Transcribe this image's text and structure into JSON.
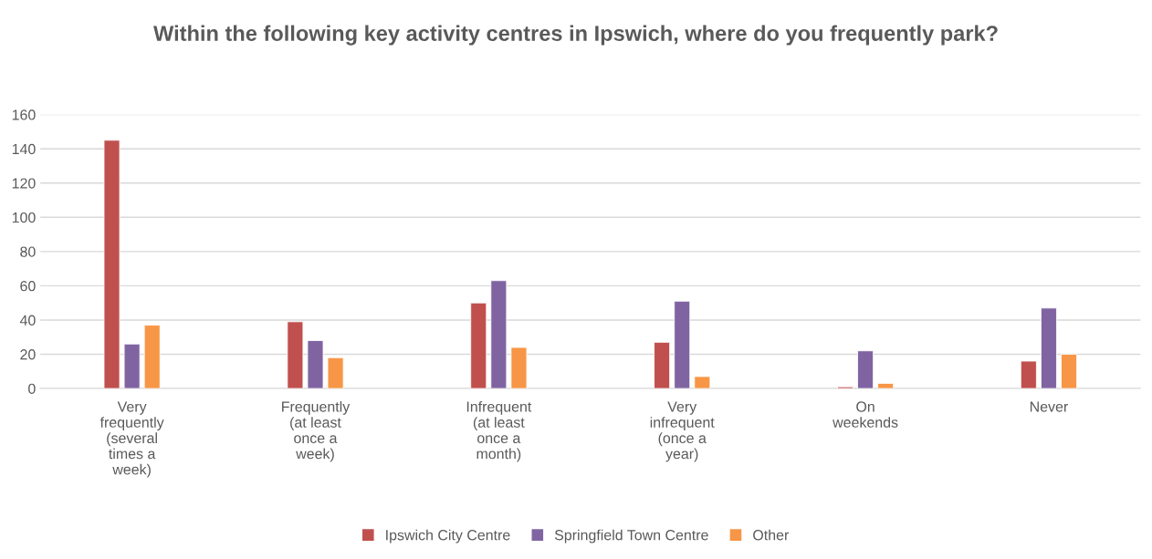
{
  "chart_data": {
    "type": "bar",
    "title": "Within the following key activity centres in Ipswich, where do you frequently park?",
    "categories": [
      "Very\nfrequently\n(several\ntimes a\nweek)",
      "Frequently\n(at least\nonce a\nweek)",
      "Infrequent\n(at least\nonce a\nmonth)",
      "Very\ninfrequent\n(once a\nyear)",
      "On\nweekends",
      "Never"
    ],
    "series": [
      {
        "name": "Ipswich City Centre",
        "color": "#c0504d",
        "values": [
          145,
          39,
          50,
          27,
          1,
          16
        ]
      },
      {
        "name": "Springfield Town Centre",
        "color": "#8064a2",
        "values": [
          26,
          28,
          63,
          51,
          22,
          47
        ]
      },
      {
        "name": "Other",
        "color": "#f79646",
        "values": [
          37,
          18,
          24,
          7,
          3,
          20
        ]
      }
    ],
    "ylim": [
      0,
      160
    ],
    "yticks": [
      0,
      20,
      40,
      60,
      80,
      100,
      120,
      140,
      160
    ],
    "grid": "y",
    "legend": "bottom"
  }
}
